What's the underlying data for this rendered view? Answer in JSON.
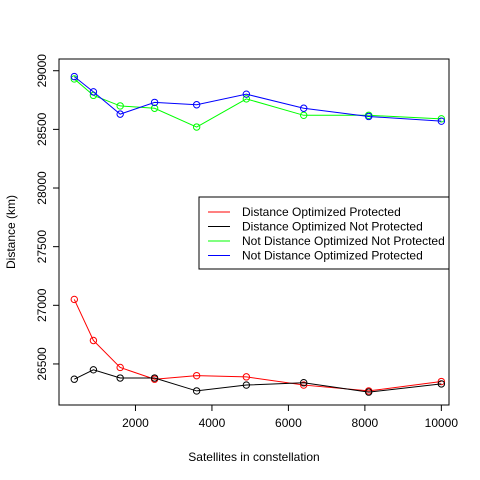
{
  "chart_data": {
    "type": "line",
    "title": "",
    "xlabel": "Satellites in constellation",
    "ylabel": "Distance (km)",
    "xlim": [
      0,
      10200
    ],
    "ylim": [
      26150,
      29100
    ],
    "x_ticks": [
      2000,
      4000,
      6000,
      8000,
      10000
    ],
    "y_ticks": [
      26500,
      27000,
      27500,
      28000,
      28500,
      29000
    ],
    "x": [
      400,
      900,
      1600,
      2500,
      3600,
      4900,
      6400,
      8100,
      10000
    ],
    "legend_position": "right, middle",
    "grid": false,
    "series": [
      {
        "name": "Distance Optimized Protected",
        "color": "#ff0000",
        "values": [
          27050,
          26700,
          26470,
          26370,
          26400,
          26390,
          26320,
          26270,
          26350
        ]
      },
      {
        "name": "Distance Optimized Not Protected",
        "color": "#000000",
        "values": [
          26370,
          26450,
          26380,
          26380,
          26270,
          26320,
          26340,
          26260,
          26330
        ]
      },
      {
        "name": "Not Distance Optimized Not Protected",
        "color": "#00ff00",
        "values": [
          28930,
          28790,
          28700,
          28680,
          28520,
          28760,
          28620,
          28620,
          28590
        ]
      },
      {
        "name": "Not Distance Optimized Protected",
        "color": "#0000ff",
        "values": [
          28950,
          28820,
          28630,
          28730,
          28710,
          28800,
          28680,
          28610,
          28570
        ]
      }
    ]
  }
}
